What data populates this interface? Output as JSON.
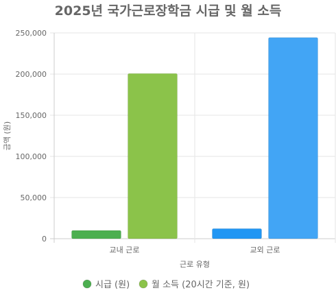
{
  "chart_data": {
    "type": "bar",
    "title": "2025년 국가근로장학금 시급 및 월 소득",
    "xlabel": "근로 유형",
    "ylabel": "금액 (원)",
    "categories": [
      "교내 근로",
      "교외 근로"
    ],
    "ylim": [
      0,
      250000
    ],
    "yticks": [
      "0",
      "50,000",
      "100,000",
      "150,000",
      "200,000",
      "250,000"
    ],
    "series": [
      {
        "name": "시급 (원)",
        "values": [
          10030,
          12220
        ],
        "legend_color": "#4caf50",
        "colors": [
          "#4caf50",
          "#2196f3"
        ]
      },
      {
        "name": "월 소득 (20시간 기준, 원)",
        "values": [
          200600,
          244400
        ],
        "legend_color": "#8bc34a",
        "colors": [
          "#8bc34a",
          "#42a5f5"
        ]
      }
    ],
    "grid": true,
    "legend_position": "bottom"
  }
}
